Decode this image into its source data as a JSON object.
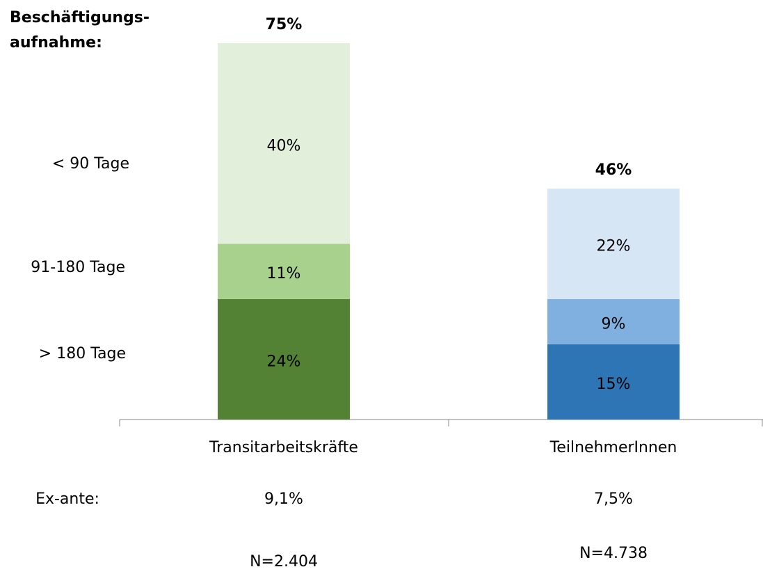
{
  "chart_data": {
    "type": "stacked_bar",
    "title": "Beschäftigungs-",
    "title_line2": "aufnahme:",
    "categories": [
      "Transitarbeitskräfte",
      "TeilnehmerInnen"
    ],
    "series": [
      {
        "name": "> 180 Tage",
        "colors": [
          "#548235",
          "#2e75b6"
        ],
        "values": [
          24,
          15
        ],
        "value_labels": [
          "24%",
          "15%"
        ]
      },
      {
        "name": "91-180 Tage",
        "colors": [
          "#a9d18e",
          "#7fb0e0"
        ],
        "values": [
          11,
          9
        ],
        "value_labels": [
          "11%",
          "9%"
        ]
      },
      {
        "name": "< 90 Tage",
        "colors": [
          "#e2efda",
          "#d6e6f5"
        ],
        "values": [
          40,
          22
        ],
        "value_labels": [
          "40%",
          "22%"
        ]
      }
    ],
    "totals": [
      75,
      46
    ],
    "total_labels": [
      "75%",
      "46%"
    ],
    "ex_ante_label": "Ex-ante:",
    "ex_ante": [
      9.1,
      7.5
    ],
    "ex_ante_labels": [
      "9,1%",
      "7,5%"
    ],
    "n_labels": [
      "N=2.404",
      "N=4.738"
    ]
  }
}
